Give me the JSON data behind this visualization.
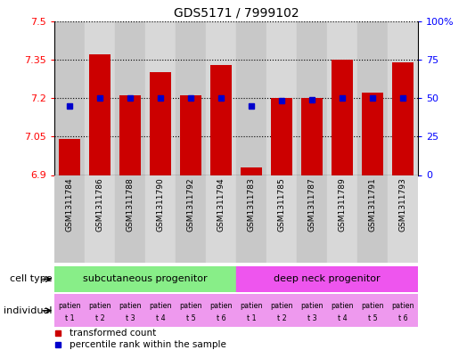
{
  "title": "GDS5171 / 7999102",
  "samples": [
    "GSM1311784",
    "GSM1311786",
    "GSM1311788",
    "GSM1311790",
    "GSM1311792",
    "GSM1311794",
    "GSM1311783",
    "GSM1311785",
    "GSM1311787",
    "GSM1311789",
    "GSM1311791",
    "GSM1311793"
  ],
  "transformed_counts": [
    7.04,
    7.37,
    7.21,
    7.3,
    7.21,
    7.33,
    6.93,
    7.2,
    7.2,
    7.35,
    7.22,
    7.34
  ],
  "percentile_ranks": [
    45,
    50,
    50,
    50,
    50,
    50,
    45,
    48,
    49,
    50,
    50,
    50
  ],
  "y_min": 6.9,
  "y_max": 7.5,
  "y_ticks": [
    6.9,
    7.05,
    7.2,
    7.35,
    7.5
  ],
  "y_tick_labels": [
    "6.9",
    "7.05",
    "7.2",
    "7.35",
    "7.5"
  ],
  "y2_ticks": [
    0,
    25,
    50,
    75,
    100
  ],
  "y2_tick_labels": [
    "0",
    "25",
    "50",
    "75",
    "100%"
  ],
  "bar_color": "#cc0000",
  "dot_color": "#0000cc",
  "cell_type_groups": [
    {
      "label": "subcutaneous progenitor",
      "start": 0,
      "end": 6,
      "color": "#88ee88"
    },
    {
      "label": "deep neck progenitor",
      "start": 6,
      "end": 12,
      "color": "#ee55ee"
    }
  ],
  "individuals": [
    "t 1",
    "t 2",
    "t 3",
    "t 4",
    "t 5",
    "t 6",
    "t 1",
    "t 2",
    "t 3",
    "t 4",
    "t 5",
    "t 6"
  ],
  "individual_color": "#ee99ee",
  "col_colors": [
    "#c8c8c8",
    "#d8d8d8"
  ],
  "legend_red_label": "transformed count",
  "legend_blue_label": "percentile rank within the sample"
}
